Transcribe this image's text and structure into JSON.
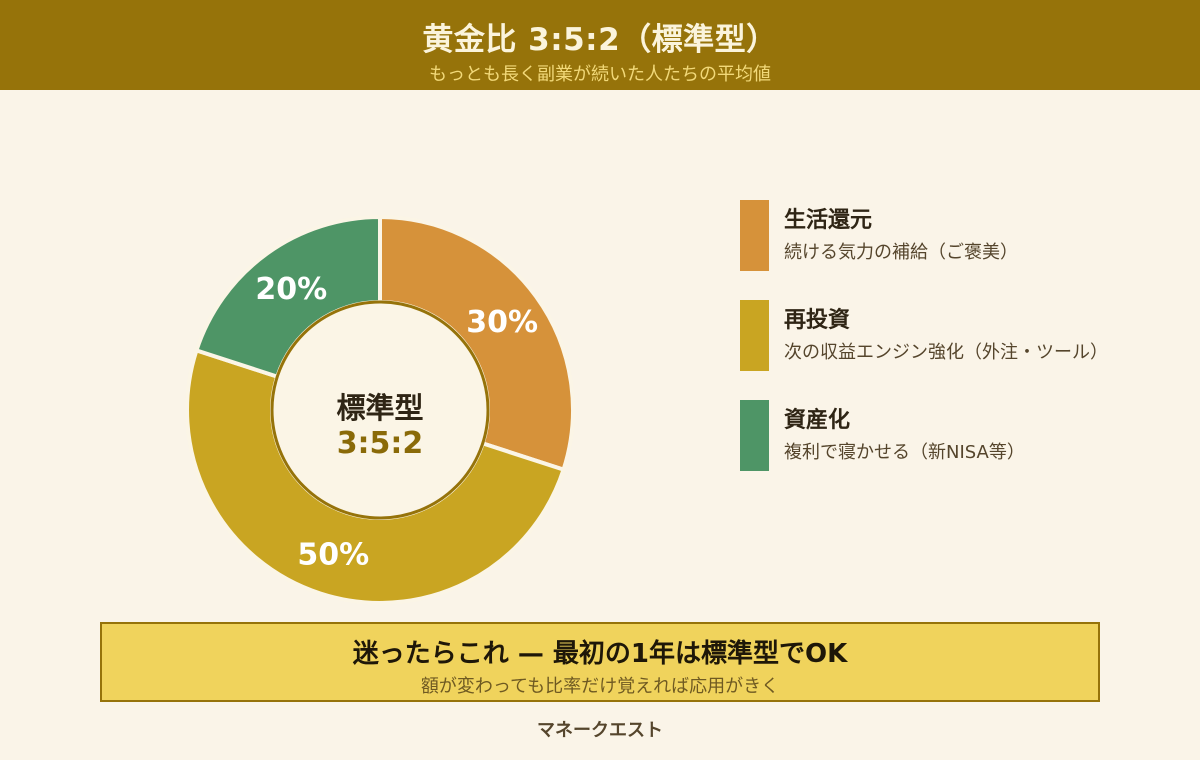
{
  "header": {
    "title": "黄金比 3:5:2（標準型）",
    "subtitle": "もっとも長く副業が続いた人たちの平均値"
  },
  "center": {
    "title": "標準型",
    "ratio": "3:5:2"
  },
  "chart_data": {
    "type": "pie",
    "donut": true,
    "slices": [
      {
        "name": "生活還元",
        "value": 30,
        "label": "30%",
        "color": "#d6923a"
      },
      {
        "name": "再投資",
        "value": 50,
        "label": "50%",
        "color": "#c9a522"
      },
      {
        "name": "資産化",
        "value": 20,
        "label": "20%",
        "color": "#4e9566"
      }
    ],
    "legend_position": "right"
  },
  "legend": [
    {
      "title": "生活還元",
      "desc": "続ける気力の補給（ご褒美）",
      "color": "#d6923a"
    },
    {
      "title": "再投資",
      "desc": "次の収益エンジン強化（外注・ツール）",
      "color": "#c9a522"
    },
    {
      "title": "資産化",
      "desc": "複利で寝かせる（新NISA等）",
      "color": "#4e9566"
    }
  ],
  "callout": {
    "title": "迷ったらこれ — 最初の1年は標準型でOK",
    "subtitle": "額が変わっても比率だけ覚えれば応用がきく"
  },
  "footer": {
    "brand": "マネークエスト"
  }
}
